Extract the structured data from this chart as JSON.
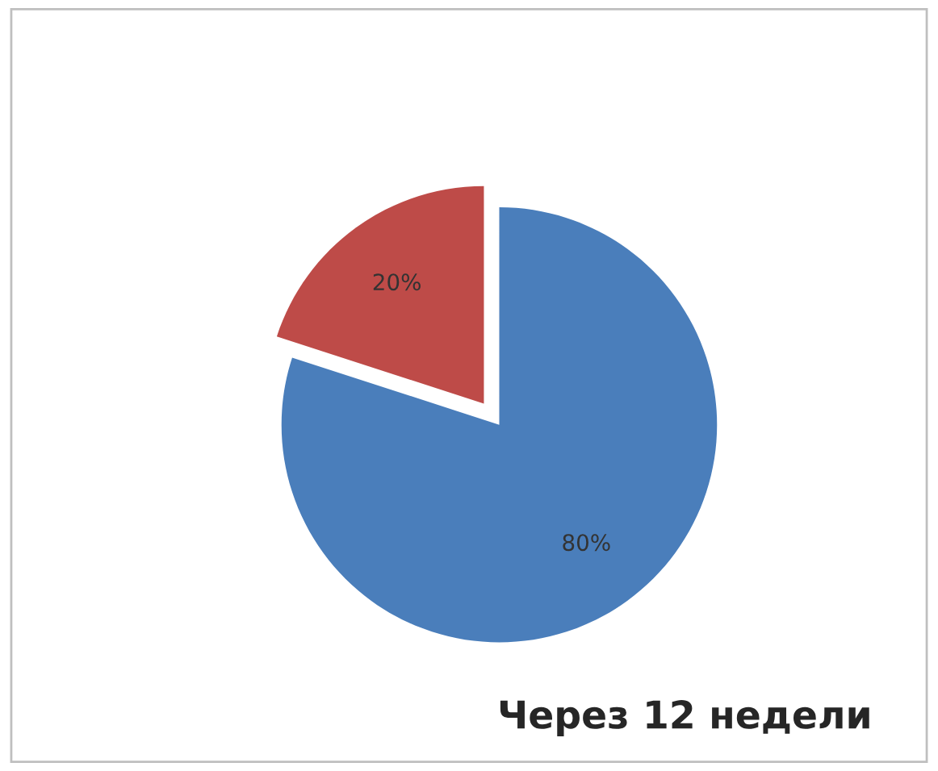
{
  "chart_data": {
    "type": "pie",
    "title": "Через 12 недели",
    "categories": [
      null,
      null
    ],
    "values": [
      80,
      20
    ],
    "colors": [
      "#4a7ebb",
      "#be4b48"
    ],
    "value_labels": [
      "80%",
      "20%"
    ],
    "legend": false
  }
}
